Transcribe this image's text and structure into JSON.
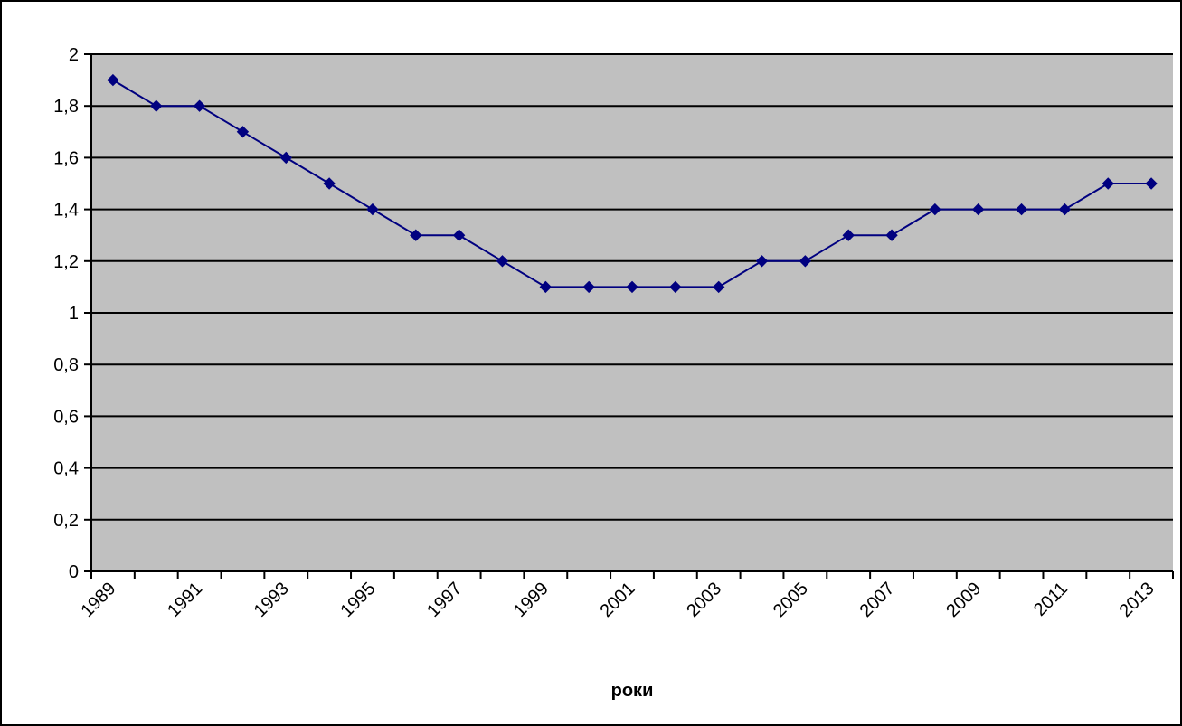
{
  "chart_data": {
    "type": "line",
    "title": "",
    "xlabel": "роки",
    "ylabel": "",
    "ylim": [
      0,
      2
    ],
    "y_ticks": [
      "0",
      "0,2",
      "0,4",
      "0,6",
      "0,8",
      "1",
      "1,2",
      "1,4",
      "1,6",
      "1,8",
      "2"
    ],
    "x_tick_labels": [
      "1989",
      "1991",
      "1993",
      "1995",
      "1997",
      "1999",
      "2001",
      "2003",
      "2005",
      "2007",
      "2009",
      "2011",
      "2013"
    ],
    "x": [
      1989,
      1990,
      1991,
      1992,
      1993,
      1994,
      1995,
      1996,
      1997,
      1998,
      1999,
      2000,
      2001,
      2002,
      2003,
      2004,
      2005,
      2006,
      2007,
      2008,
      2009,
      2010,
      2011,
      2012,
      2013
    ],
    "series": [
      {
        "values": [
          1.9,
          1.8,
          1.8,
          1.7,
          1.6,
          1.5,
          1.4,
          1.3,
          1.3,
          1.2,
          1.1,
          1.1,
          1.1,
          1.1,
          1.1,
          1.2,
          1.2,
          1.3,
          1.3,
          1.4,
          1.4,
          1.4,
          1.4,
          1.5,
          1.5
        ],
        "color": "#000080"
      }
    ],
    "plot_background": "#c0c0c0",
    "grid": true,
    "legend": "none"
  }
}
